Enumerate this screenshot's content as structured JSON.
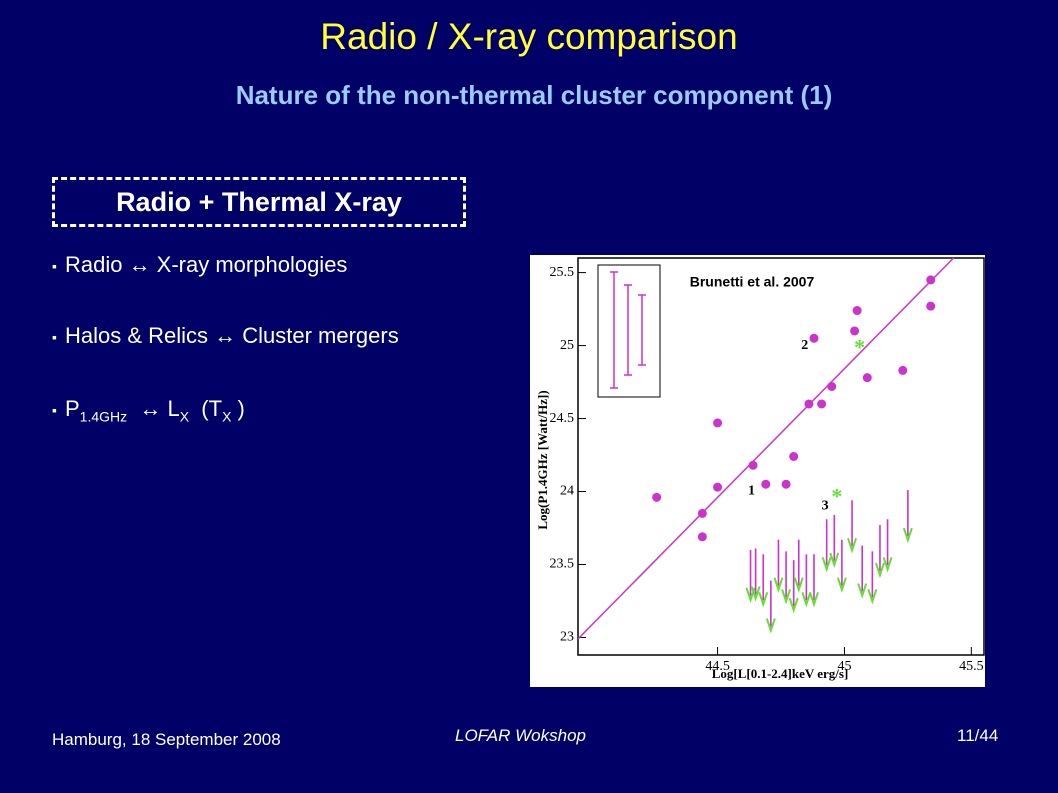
{
  "slide": {
    "title": "Radio / X-ray comparison",
    "subtitle": "Nature of the non-thermal cluster component (1)",
    "box_title": "Radio + Thermal X-ray",
    "bullets": [
      "Radio ↔ X-ray morphologies",
      "Halos & Relics ↔ Cluster mergers"
    ],
    "bullet3": {
      "p": "P",
      "p_sub": "1.4GHz",
      "mid": "↔ L",
      "l_sub": "X",
      "t": "(T",
      "t_sub": "X",
      "end": ")"
    },
    "footer_left": "Hamburg, 18 September 2008",
    "footer_center": "LOFAR Wokshop",
    "footer_right": "11/44"
  },
  "chart_data": {
    "type": "scatter",
    "annotation": "Brunetti et al. 2007",
    "x_label": "Log[L[0.1-2.4]keV erg/s]",
    "y_label": "Log(P1.4GHz [Watt/Hz])",
    "xlim": [
      43.95,
      45.55
    ],
    "ylim": [
      22.88,
      25.6
    ],
    "xticks": [
      44.5,
      45,
      45.5
    ],
    "yticks": [
      23,
      23.5,
      24,
      24.5,
      25,
      25.5
    ],
    "point_labels": [
      {
        "text": "1",
        "x": 44.62,
        "y": 24.0
      },
      {
        "text": "2",
        "x": 44.83,
        "y": 25.0
      },
      {
        "text": "3",
        "x": 44.91,
        "y": 23.9
      }
    ],
    "series": [
      {
        "color": "#cc33cc",
        "marker": "circle",
        "x": [
          44.26,
          44.44,
          44.44,
          44.5,
          44.5,
          44.64,
          44.69,
          44.77,
          44.8,
          44.86,
          44.91,
          44.88,
          44.95,
          45.04,
          45.05,
          45.09,
          45.23,
          45.34,
          45.34
        ],
        "values": [
          23.96,
          23.85,
          23.69,
          24.47,
          24.03,
          24.18,
          24.05,
          24.05,
          24.24,
          24.6,
          24.6,
          25.05,
          24.72,
          25.1,
          25.24,
          24.78,
          24.83,
          25.45,
          25.27
        ]
      },
      {
        "color": "#66dd33",
        "marker": "star",
        "x": [
          45.06,
          44.97
        ],
        "values": [
          25.0,
          23.98
        ]
      },
      {
        "color": "#cc33cc",
        "marker": "upper-limit",
        "x": [
          44.63,
          44.65,
          44.68,
          44.71,
          44.74,
          44.77,
          44.8,
          44.82,
          44.85,
          44.88,
          44.93,
          44.96,
          44.99,
          45.03,
          45.07,
          45.11,
          45.14,
          45.17,
          45.25
        ],
        "values": [
          23.6,
          23.61,
          23.57,
          23.39,
          23.67,
          23.59,
          23.53,
          23.67,
          23.57,
          23.57,
          23.81,
          23.84,
          23.67,
          23.94,
          23.63,
          23.59,
          23.77,
          23.81,
          24.01
        ]
      }
    ],
    "fit": {
      "x": [
        43.95,
        45.43
      ],
      "values": [
        22.99,
        25.6
      ],
      "color": "#cc33cc"
    }
  }
}
